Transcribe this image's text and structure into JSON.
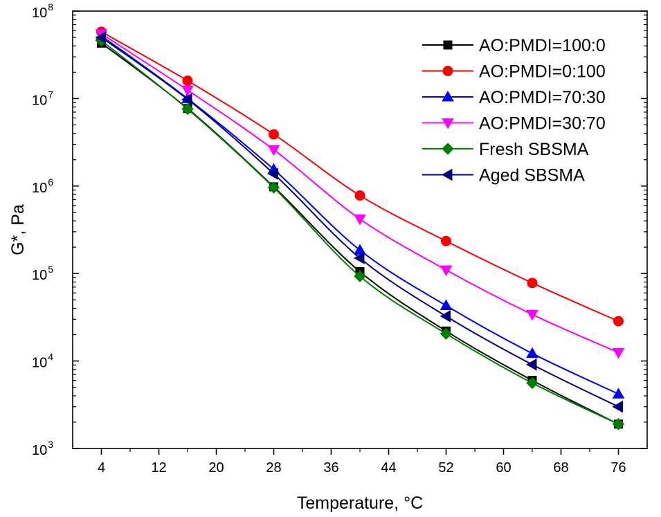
{
  "chart_data": {
    "type": "line",
    "title": "",
    "xlabel": "Temperature, °C",
    "ylabel": "G*, Pa",
    "xlim": [
      0,
      80
    ],
    "ylim": [
      1000,
      100000000
    ],
    "yscale": "log",
    "x_ticks": [
      4,
      12,
      20,
      28,
      36,
      44,
      52,
      60,
      68,
      76
    ],
    "x_tick_labels": [
      "4",
      "12",
      "20",
      "28",
      "36",
      "44",
      "52",
      "60",
      "68",
      "76"
    ],
    "y_ticks": [
      1000,
      10000,
      100000,
      1000000,
      10000000,
      100000000
    ],
    "y_tick_labels": [
      {
        "base": "10",
        "exp": "3"
      },
      {
        "base": "10",
        "exp": "4"
      },
      {
        "base": "10",
        "exp": "5"
      },
      {
        "base": "10",
        "exp": "6"
      },
      {
        "base": "10",
        "exp": "7"
      },
      {
        "base": "10",
        "exp": "8"
      }
    ],
    "legend_position": "top-right",
    "x": [
      4,
      16,
      28,
      40,
      52,
      64,
      76
    ],
    "series": [
      {
        "name": "AO:PMDI=100:0",
        "color": "#000000",
        "marker": "square",
        "values": [
          43000000,
          7700000,
          980000,
          105000,
          22000,
          6000,
          1900
        ]
      },
      {
        "name": "AO:PMDI=0:100",
        "color": "#ff0000",
        "marker": "circle",
        "values": [
          58000000,
          16000000,
          3900000,
          780000,
          235000,
          78000,
          28500
        ]
      },
      {
        "name": "AO:PMDI=70:30",
        "color": "#0000ff",
        "marker": "triangle-up",
        "values": [
          52000000,
          10000000,
          1550000,
          185000,
          43000,
          12200,
          4200
        ]
      },
      {
        "name": "AO:PMDI=30:70",
        "color": "#ff00ff",
        "marker": "triangle-down",
        "values": [
          55000000,
          12500000,
          2600000,
          420000,
          110000,
          34000,
          12500
        ]
      },
      {
        "name": "Fresh SBSMA",
        "color": "#008000",
        "marker": "diamond",
        "values": [
          46000000,
          7600000,
          960000,
          93000,
          20500,
          5600,
          1900
        ]
      },
      {
        "name": "Aged SBSMA",
        "color": "#000080",
        "marker": "triangle-left",
        "values": [
          50000000,
          9800000,
          1380000,
          150000,
          32500,
          9100,
          3000
        ]
      }
    ]
  }
}
